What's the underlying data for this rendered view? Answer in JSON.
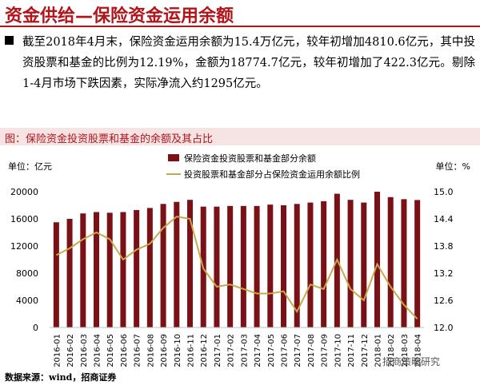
{
  "page": {
    "title": "资金供给—保险资金运用余额",
    "bullet": "截至2018年4月末，保险资金运用余额为15.4万亿元，较年初增加4810.6亿元，其中投资股票和基金的比例为12.19%，金额为18774.7亿元，较年初增加了422.3亿元。剔除1-4月市场下跌因素，实际净流入约1295亿元。",
    "chart_heading": "图：保险资金投资股票和基金的余额及其占比",
    "source": "数据来源：wind，招商证券",
    "watermark": "招商策略研究"
  },
  "colors": {
    "title_red": "#b3141a",
    "bar": "#7a1116",
    "line": "#c9a84c"
  },
  "chart_data": {
    "type": "bar",
    "unit_left": "单位：亿元",
    "unit_right": "单位：%",
    "categories": [
      "2016-01",
      "2016-02",
      "2016-03",
      "2016-04",
      "2016-05",
      "2016-06",
      "2016-07",
      "2016-08",
      "2016-09",
      "2016-10",
      "2016-11",
      "2016-12",
      "2017-01",
      "2017-02",
      "2017-03",
      "2017-04",
      "2017-05",
      "2017-06",
      "2017-07",
      "2017-08",
      "2017-09",
      "2017-10",
      "2017-11",
      "2017-12",
      "2018-01",
      "2018-02",
      "2018-03",
      "2018-04"
    ],
    "yticks_left": [
      "0",
      "4000",
      "8000",
      "12000",
      "16000",
      "20000"
    ],
    "ylim_left": [
      0,
      20000
    ],
    "yticks_right": [
      "12.0",
      "12.6",
      "13.2",
      "13.8",
      "14.4",
      "15.0"
    ],
    "ylim_right": [
      12.0,
      15.0
    ],
    "series": [
      {
        "name": "保险资金投资股票和基金部分余额",
        "axis": "left",
        "type": "bar",
        "values": [
          15500,
          16000,
          16800,
          17000,
          16900,
          17000,
          17300,
          17600,
          18200,
          18500,
          18800,
          17800,
          17800,
          17900,
          17900,
          17900,
          18100,
          18000,
          18200,
          18400,
          18600,
          19700,
          18800,
          18400,
          20000,
          19200,
          18900,
          18775
        ]
      },
      {
        "name": "投资股票和基金部分占保险资金运用余额比例",
        "axis": "right",
        "type": "line",
        "values": [
          13.6,
          13.75,
          13.95,
          14.1,
          13.95,
          13.5,
          13.72,
          13.85,
          14.2,
          14.45,
          14.4,
          13.3,
          12.9,
          12.95,
          12.85,
          12.75,
          12.75,
          12.8,
          12.35,
          12.95,
          12.85,
          13.5,
          12.85,
          12.6,
          13.4,
          12.9,
          12.5,
          12.19
        ]
      }
    ],
    "grid": false,
    "legend": "top-center"
  }
}
